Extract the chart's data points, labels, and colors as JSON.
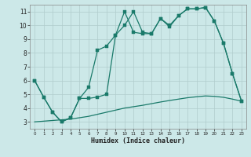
{
  "xlabel": "Humidex (Indice chaleur)",
  "bg_color": "#cce8e8",
  "grid_color": "#b0cccc",
  "line_color": "#1a7a6a",
  "xlim": [
    -0.5,
    23.5
  ],
  "ylim": [
    2.5,
    11.5
  ],
  "xticks": [
    0,
    1,
    2,
    3,
    4,
    5,
    6,
    7,
    8,
    9,
    10,
    11,
    12,
    13,
    14,
    15,
    16,
    17,
    18,
    19,
    20,
    21,
    22,
    23
  ],
  "yticks": [
    3,
    4,
    5,
    6,
    7,
    8,
    9,
    10,
    11
  ],
  "line1_x": [
    0,
    1,
    2,
    3,
    4,
    5,
    6,
    7,
    8,
    9,
    10,
    11,
    12,
    13,
    14,
    15,
    16,
    17,
    18,
    19,
    20,
    21,
    22,
    23
  ],
  "line1_y": [
    6.0,
    4.8,
    3.7,
    3.0,
    3.3,
    4.7,
    4.7,
    4.8,
    5.0,
    9.3,
    10.0,
    11.0,
    9.5,
    9.4,
    10.5,
    10.0,
    10.7,
    11.2,
    11.2,
    11.3,
    10.3,
    8.7,
    6.5,
    4.5
  ],
  "line2_x": [
    0,
    1,
    2,
    3,
    4,
    5,
    6,
    7,
    8,
    9,
    10,
    11,
    12,
    13,
    14,
    15,
    16,
    17,
    18,
    19,
    20,
    21,
    22,
    23
  ],
  "line2_y": [
    3.0,
    3.05,
    3.1,
    3.15,
    3.2,
    3.3,
    3.4,
    3.55,
    3.7,
    3.85,
    4.0,
    4.1,
    4.2,
    4.32,
    4.44,
    4.55,
    4.65,
    4.75,
    4.82,
    4.88,
    4.85,
    4.78,
    4.65,
    4.5
  ],
  "line3_x": [
    0,
    1,
    2,
    3,
    4,
    5,
    6,
    7,
    8,
    9,
    10,
    11,
    12,
    13,
    14,
    15,
    16,
    17,
    18,
    19,
    20,
    21,
    22,
    23
  ],
  "line3_y": [
    6.0,
    4.8,
    3.7,
    3.0,
    3.3,
    4.7,
    5.5,
    8.2,
    8.5,
    9.3,
    11.0,
    9.5,
    9.4,
    9.4,
    10.5,
    9.9,
    10.7,
    11.2,
    11.2,
    11.3,
    10.3,
    8.7,
    6.5,
    4.5
  ]
}
